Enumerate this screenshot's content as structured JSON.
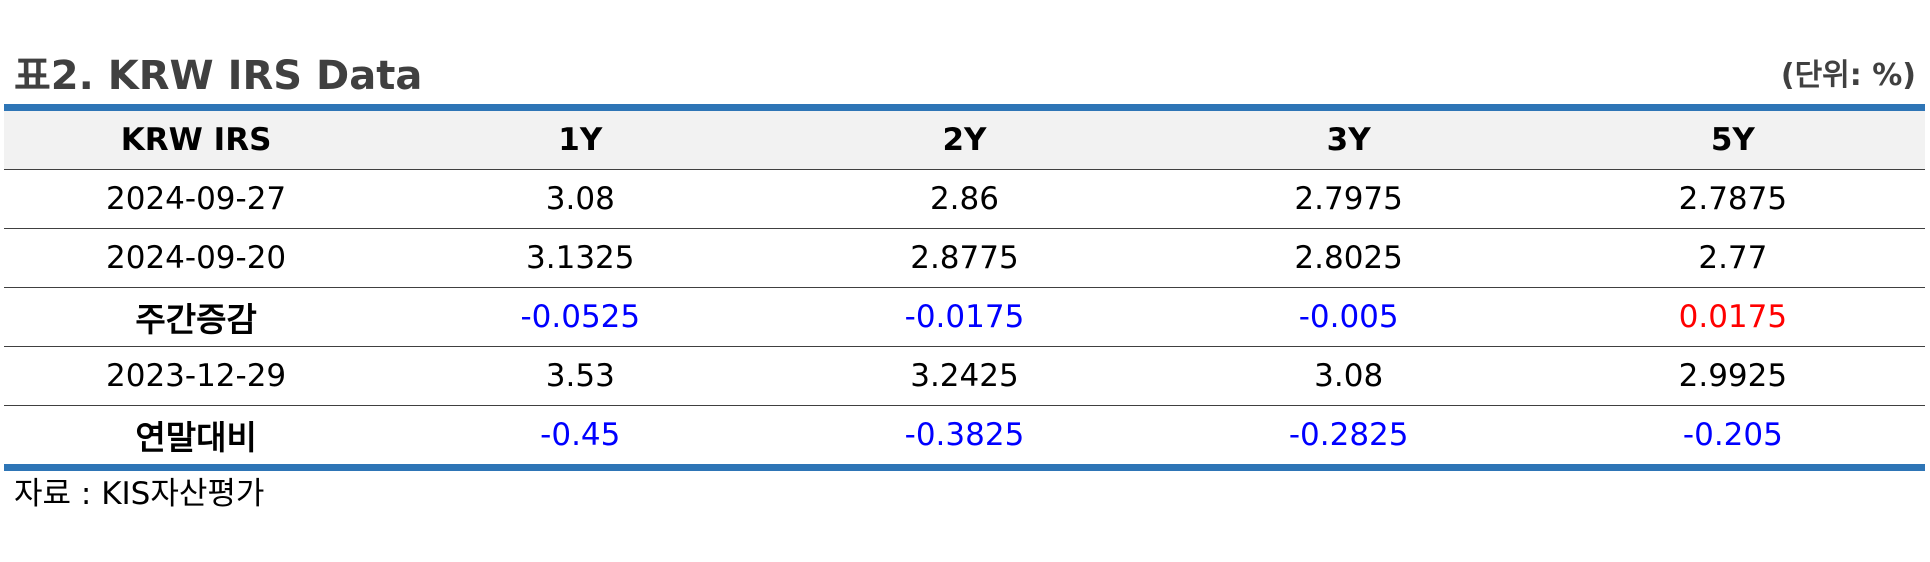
{
  "title": "표2. KRW IRS Data",
  "unit": "(단위: %)",
  "table": {
    "headers": [
      "KRW IRS",
      "1Y",
      "2Y",
      "3Y",
      "5Y"
    ],
    "rows": [
      {
        "label": "2024-09-27",
        "bold": false,
        "values": [
          "3.08",
          "2.86",
          "2.7975",
          "2.7875"
        ],
        "colors": [
          "",
          "",
          "",
          ""
        ]
      },
      {
        "label": "2024-09-20",
        "bold": false,
        "values": [
          "3.1325",
          "2.8775",
          "2.8025",
          "2.77"
        ],
        "colors": [
          "",
          "",
          "",
          ""
        ]
      },
      {
        "label": "주간증감",
        "bold": true,
        "values": [
          "-0.0525",
          "-0.0175",
          "-0.005",
          "0.0175"
        ],
        "colors": [
          "neg",
          "neg",
          "neg",
          "pos"
        ]
      },
      {
        "label": "2023-12-29",
        "bold": false,
        "values": [
          "3.53",
          "3.2425",
          "3.08",
          "2.9925"
        ],
        "colors": [
          "",
          "",
          "",
          ""
        ]
      },
      {
        "label": "연말대비",
        "bold": true,
        "values": [
          "-0.45",
          "-0.3825",
          "-0.2825",
          "-0.205"
        ],
        "colors": [
          "neg",
          "neg",
          "neg",
          "neg"
        ]
      }
    ]
  },
  "source": "자료 : KIS자산평가",
  "colors": {
    "border_accent": "#2e75b6",
    "header_bg": "#f2f2f2",
    "negative": "#0000ff",
    "positive": "#ff0000",
    "title": "#404040"
  }
}
